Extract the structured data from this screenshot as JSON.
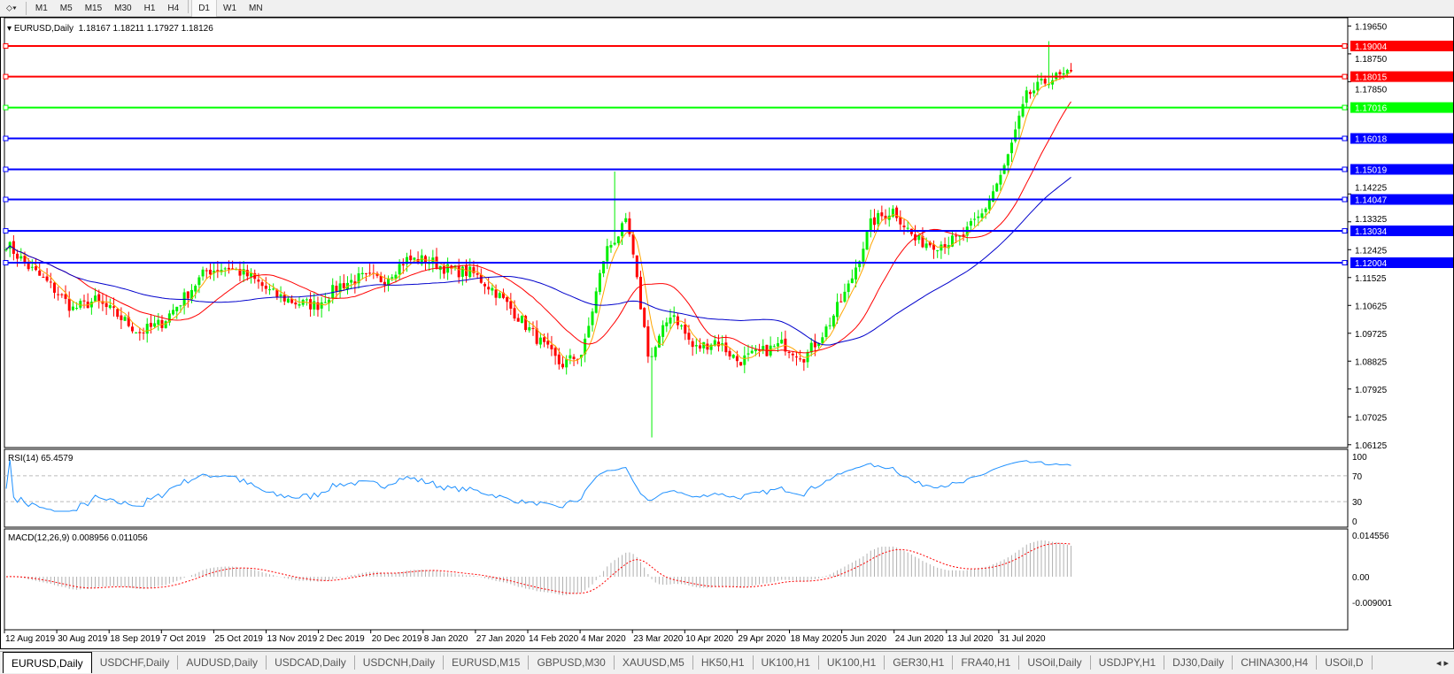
{
  "toolbar": {
    "timeframes": [
      "M1",
      "M5",
      "M15",
      "M30",
      "H1",
      "H4",
      "D1",
      "W1",
      "MN"
    ],
    "active": "D1"
  },
  "chart": {
    "symbol_title": "EURUSD,Daily",
    "ohlc": "1.18167 1.18211 1.17927 1.18126",
    "price_axis": [
      "1.19650",
      "1.18750",
      "1.17850",
      "1.14225",
      "1.13325",
      "1.12425",
      "1.11525",
      "1.10625",
      "1.09725",
      "1.08825",
      "1.07925",
      "1.07025",
      "1.06125"
    ],
    "hlines": [
      {
        "price": "1.19004",
        "color": "#ff0000"
      },
      {
        "price": "1.18015",
        "color": "#ff0000"
      },
      {
        "price": "1.17016",
        "color": "#00ff00"
      },
      {
        "price": "1.16018",
        "color": "#0000ff"
      },
      {
        "price": "1.15019",
        "color": "#0000ff"
      },
      {
        "price": "1.14047",
        "color": "#0000ff"
      },
      {
        "price": "1.13034",
        "color": "#0000ff"
      },
      {
        "price": "1.12004",
        "color": "#0000ff"
      }
    ],
    "colors": {
      "bull": "#00ee00",
      "bear": "#ff0000",
      "ma_fast": "#ffa500",
      "ma_mid": "#ff0000",
      "ma_slow": "#0000cc",
      "rsi": "#1e90ff",
      "macd_hist": "#b0b0b0",
      "macd_signal": "#ff0000"
    },
    "close_path": [
      1.1263,
      1.1187,
      1.1127,
      1.1051,
      1.1078,
      1.1032,
      1.0975,
      1.1005,
      1.1086,
      1.1173,
      1.1187,
      1.1154,
      1.11,
      1.1073,
      1.1062,
      1.1127,
      1.1152,
      1.1146,
      1.1209,
      1.1209,
      1.1176,
      1.1168,
      1.1111,
      1.1032,
      1.095,
      1.0869,
      1.091,
      1.1236,
      1.1331,
      1.0882,
      1.1046,
      1.0921,
      1.095,
      1.0882,
      1.091,
      1.0937,
      1.0896,
      1.0991,
      1.1127,
      1.1331,
      1.1372,
      1.1271,
      1.126,
      1.1277,
      1.1358,
      1.1508,
      1.1739,
      1.1794,
      1.1807
    ],
    "extremes": {
      "mar_high": 1.1495,
      "mar_low": 1.0636,
      "aug_high": 1.1916
    },
    "dates": [
      "12 Aug 2019",
      "30 Aug 2019",
      "18 Sep 2019",
      "7 Oct 2019",
      "25 Oct 2019",
      "13 Nov 2019",
      "2 Dec 2019",
      "20 Dec 2019",
      "8 Jan 2020",
      "27 Jan 2020",
      "14 Feb 2020",
      "4 Mar 2020",
      "23 Mar 2020",
      "10 Apr 2020",
      "29 Apr 2020",
      "18 May 2020",
      "5 Jun 2020",
      "24 Jun 2020",
      "13 Jul 2020",
      "31 Jul 2020"
    ]
  },
  "rsi": {
    "title": "RSI(14) 65.4579",
    "levels": [
      "100",
      "70",
      "30",
      "0"
    ]
  },
  "macd": {
    "title": "MACD(12,26,9) 0.008956 0.011056",
    "levels": [
      "0.014556",
      "0.00",
      "-0.009001"
    ]
  },
  "tabs": [
    "EURUSD,Daily",
    "USDCHF,Daily",
    "AUDUSD,Daily",
    "USDCAD,Daily",
    "USDCNH,Daily",
    "EURUSD,M15",
    "GBPUSD,M30",
    "XAUUSD,M5",
    "HK50,H1",
    "UK100,H1",
    "UK100,H1",
    "GER30,H1",
    "FRA40,H1",
    "USOil,Daily",
    "USDJPY,H1",
    "DJ30,Daily",
    "CHINA300,H4",
    "USOil,D"
  ]
}
